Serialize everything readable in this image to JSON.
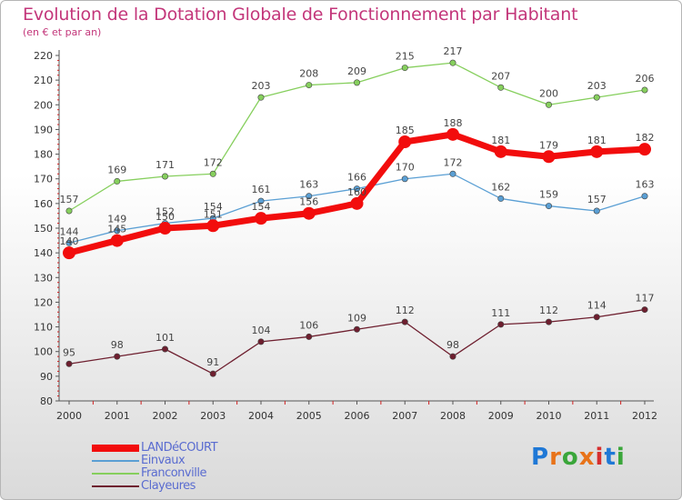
{
  "header": {
    "title": "Evolution de la Dotation Globale de Fonctionnement par Habitant",
    "subtitle": "(en € et par an)"
  },
  "brand": {
    "text": "Proxiti",
    "letter_colors": [
      "#1f78d6",
      "#e8731a",
      "#3aa63a",
      "#e8731a",
      "#d62f2f",
      "#1f78d6",
      "#3aa63a"
    ]
  },
  "chart_data": {
    "type": "line",
    "x": [
      "2000",
      "2001",
      "2002",
      "2003",
      "2004",
      "2005",
      "2006",
      "2007",
      "2008",
      "2009",
      "2010",
      "2011",
      "2012"
    ],
    "ylim": [
      80,
      220
    ],
    "yticks": [
      "80",
      "90",
      "100",
      "110",
      "120",
      "130",
      "140",
      "150",
      "160",
      "170",
      "180",
      "190",
      "200",
      "210",
      "220"
    ],
    "grid": false,
    "legend_placement": "bottom-left",
    "series": [
      {
        "name": "Clayeures",
        "color": "#6e1f2f",
        "values": [
          95,
          98,
          101,
          91,
          104,
          106,
          109,
          112,
          98,
          111,
          112,
          114,
          117
        ]
      },
      {
        "name": "Franconville",
        "color": "#86cf5d",
        "values": [
          157,
          169,
          171,
          172,
          203,
          208,
          209,
          215,
          217,
          207,
          200,
          203,
          206
        ]
      },
      {
        "name": "Einvaux",
        "color": "#5a9fd4",
        "values": [
          144,
          149,
          152,
          154,
          161,
          163,
          166,
          170,
          172,
          162,
          159,
          157,
          163
        ]
      },
      {
        "name": "LANDéCOURT",
        "color": "#f20d0d",
        "values": [
          140,
          145,
          150,
          151,
          154,
          156,
          160,
          185,
          188,
          181,
          179,
          181,
          182
        ]
      }
    ],
    "legend_order": [
      "LANDéCOURT",
      "Einvaux",
      "Franconville",
      "Clayeures"
    ]
  }
}
